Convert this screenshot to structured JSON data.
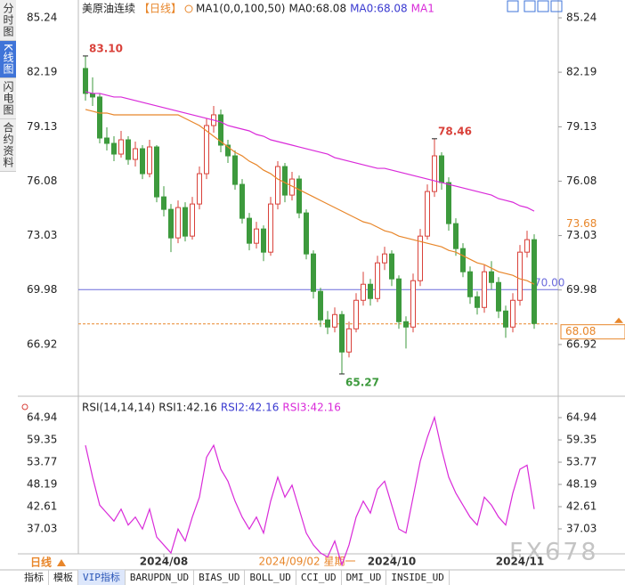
{
  "sidebar": [
    "分时图",
    "K线图",
    "闪电图",
    "合约资料"
  ],
  "chart_data": [
    {
      "type": "candlestick",
      "title": "美原油连续",
      "period": "【日线】",
      "indicator": "MA1(0,0,100,50)",
      "legend": [
        {
          "label": "MA0:68.08",
          "color": "#222222"
        },
        {
          "label": "MA0:68.08",
          "color": "#3a3ad0"
        },
        {
          "label": "MA1",
          "color": "#d92ad9"
        }
      ],
      "ylim": [
        64.27,
        85.99
      ],
      "yticks": [
        85.24,
        82.19,
        79.13,
        76.08,
        73.03,
        69.98,
        66.92
      ],
      "up_color": "#d9413a",
      "down_color": "#3d9a3d",
      "open": [
        82.4,
        81.0,
        80.8,
        78.5,
        78.2,
        77.6,
        78.4,
        77.3,
        77.9,
        76.5,
        78.0,
        75.2,
        74.5,
        72.9,
        74.6,
        73.0,
        74.8,
        76.5,
        79.2,
        79.8,
        78.1,
        77.5,
        75.9,
        74.0,
        72.6,
        73.4,
        72.1,
        74.8,
        76.9,
        75.3,
        76.2,
        74.3,
        72.0,
        69.9,
        68.3,
        67.9,
        68.6,
        66.5,
        67.8,
        69.4,
        70.3,
        69.5,
        71.5,
        72.0,
        70.6,
        68.2,
        67.9,
        70.5,
        73.0,
        75.5,
        77.5,
        76.0,
        73.7,
        72.3,
        71.0,
        69.6,
        69.0,
        71.0,
        70.4,
        68.8,
        67.9,
        69.4,
        72.1,
        72.8
      ],
      "high": [
        83.1,
        81.9,
        81.0,
        79.1,
        78.6,
        78.9,
        78.6,
        78.3,
        78.1,
        78.4,
        78.1,
        75.8,
        74.8,
        75.0,
        74.9,
        75.2,
        76.9,
        79.6,
        80.3,
        80.1,
        78.4,
        77.8,
        76.2,
        74.3,
        73.8,
        73.6,
        75.2,
        77.2,
        77.1,
        76.6,
        76.4,
        74.5,
        72.2,
        70.1,
        68.8,
        69.0,
        68.8,
        68.2,
        69.8,
        71.0,
        70.6,
        71.9,
        72.4,
        72.2,
        70.8,
        68.5,
        70.9,
        73.4,
        75.9,
        78.46,
        77.7,
        76.3,
        74.0,
        72.6,
        71.3,
        69.9,
        71.4,
        71.6,
        70.7,
        69.1,
        69.8,
        72.5,
        73.3,
        73.1
      ],
      "low": [
        80.6,
        80.3,
        78.2,
        77.8,
        77.2,
        77.4,
        77.0,
        76.9,
        76.2,
        76.3,
        74.9,
        74.1,
        72.1,
        72.6,
        72.7,
        72.8,
        74.5,
        76.2,
        78.8,
        77.7,
        77.1,
        75.6,
        73.7,
        72.2,
        72.3,
        71.6,
        71.9,
        74.5,
        74.9,
        75.0,
        74.0,
        71.7,
        69.5,
        67.9,
        67.5,
        67.6,
        65.27,
        66.2,
        67.6,
        69.1,
        69.1,
        69.3,
        71.1,
        70.2,
        67.8,
        66.7,
        67.6,
        70.2,
        72.8,
        75.2,
        75.6,
        73.3,
        71.9,
        70.7,
        69.2,
        68.6,
        68.7,
        70.0,
        68.4,
        67.3,
        67.6,
        69.1,
        71.8,
        67.8
      ],
      "close": [
        81.0,
        80.8,
        78.5,
        78.2,
        77.6,
        78.4,
        77.3,
        77.9,
        76.5,
        78.0,
        75.2,
        74.5,
        72.9,
        74.6,
        73.0,
        74.8,
        76.5,
        79.2,
        79.8,
        78.1,
        77.5,
        75.9,
        74.0,
        72.6,
        73.4,
        72.1,
        74.8,
        76.9,
        75.3,
        76.2,
        74.3,
        72.0,
        69.9,
        68.3,
        67.9,
        68.6,
        66.5,
        67.8,
        69.4,
        70.3,
        69.5,
        71.5,
        72.0,
        70.6,
        68.2,
        67.9,
        70.5,
        73.0,
        75.5,
        77.5,
        76.0,
        73.7,
        72.3,
        71.0,
        69.6,
        69.0,
        71.0,
        70.4,
        68.8,
        67.9,
        69.4,
        72.1,
        72.8,
        68.1
      ],
      "series": [
        {
          "color": "#e8862a",
          "values": [
            80.1,
            80.0,
            79.9,
            79.9,
            79.8,
            79.8,
            79.8,
            79.8,
            79.8,
            79.8,
            79.8,
            79.8,
            79.8,
            79.8,
            79.6,
            79.4,
            79.2,
            78.9,
            78.6,
            78.3,
            78.0,
            77.7,
            77.5,
            77.2,
            77.0,
            76.7,
            76.5,
            76.2,
            76.0,
            75.8,
            75.6,
            75.4,
            75.2,
            75.0,
            74.8,
            74.6,
            74.4,
            74.2,
            74.0,
            73.8,
            73.7,
            73.5,
            73.3,
            73.2,
            73.0,
            72.9,
            72.8,
            72.7,
            72.6,
            72.5,
            72.4,
            72.2,
            72.1,
            71.9,
            71.7,
            71.5,
            71.4,
            71.2,
            71.0,
            70.9,
            70.8,
            70.6,
            70.5,
            70.3
          ]
        },
        {
          "color": "#d92ad9",
          "values": [
            81.1,
            81.0,
            81.0,
            80.9,
            80.8,
            80.8,
            80.7,
            80.6,
            80.5,
            80.4,
            80.3,
            80.2,
            80.1,
            80.0,
            79.9,
            79.8,
            79.7,
            79.6,
            79.5,
            79.4,
            79.2,
            79.1,
            79.0,
            78.9,
            78.7,
            78.6,
            78.4,
            78.3,
            78.2,
            78.1,
            78.0,
            77.9,
            77.8,
            77.7,
            77.6,
            77.4,
            77.3,
            77.2,
            77.1,
            77.0,
            76.9,
            76.8,
            76.8,
            76.7,
            76.6,
            76.5,
            76.4,
            76.3,
            76.2,
            76.1,
            76.0,
            75.9,
            75.8,
            75.7,
            75.6,
            75.5,
            75.4,
            75.3,
            75.1,
            75.0,
            74.9,
            74.7,
            74.6,
            74.4
          ]
        }
      ],
      "price_lines": [
        {
          "value": 73.68,
          "label": "73.68",
          "color": "#e8862a",
          "line": "none"
        },
        {
          "value": 70,
          "label": "70.00",
          "color": "#6b6bdc",
          "line": "solid"
        },
        {
          "value": 68.08,
          "label": "68.08",
          "color": "#e8862a",
          "line": "dashed"
        }
      ],
      "annotations": [
        {
          "x": 0,
          "value": 83.1,
          "label": "83.10",
          "color": "#d9413a"
        },
        {
          "x": 49,
          "value": 78.46,
          "label": "78.46",
          "color": "#d9413a"
        },
        {
          "x": 36,
          "value": 65.27,
          "label": "65.27",
          "color": "#3d9a3d"
        }
      ]
    },
    {
      "type": "line",
      "indicator": "RSI(14,14,14)",
      "legend": [
        {
          "label": "RSI1:42.16",
          "color": "#222222"
        },
        {
          "label": "RSI2:42.16",
          "color": "#3a3ad0"
        },
        {
          "label": "RSI3:42.16",
          "color": "#d92ad9"
        }
      ],
      "ylim": [
        30.78,
        68.07
      ],
      "yticks": [
        64.94,
        59.35,
        53.77,
        48.19,
        42.61,
        37.03
      ],
      "series": [
        {
          "color": "#d92ad9",
          "values": [
            58,
            50,
            43,
            41,
            39,
            42,
            38,
            40,
            37,
            42,
            35,
            33,
            31,
            37,
            34,
            40,
            45,
            55,
            58,
            52,
            49,
            44,
            40,
            37,
            40,
            36,
            44,
            50,
            45,
            48,
            42,
            36,
            33,
            31,
            30,
            34,
            28,
            33,
            40,
            44,
            41,
            47,
            49,
            43,
            37,
            36,
            45,
            54,
            60,
            65,
            57,
            50,
            46,
            43,
            40,
            38,
            45,
            43,
            40,
            38,
            46,
            52,
            53,
            42
          ]
        }
      ],
      "xticks": [
        {
          "value": 11,
          "label": "2024/08"
        },
        {
          "value": 43,
          "label": "2024/10"
        },
        {
          "value": 61,
          "label": "2024/11"
        }
      ],
      "cursor_label": "2024/09/02 星期一"
    }
  ],
  "period_button": "日线",
  "watermark": "FX678",
  "tabs": [
    "指标",
    "模板",
    "VIP指标",
    "BARUPDN_UD",
    "BIAS_UD",
    "BOLL_UD",
    "CCI_UD",
    "DMI_UD",
    "INSIDE_UD"
  ]
}
